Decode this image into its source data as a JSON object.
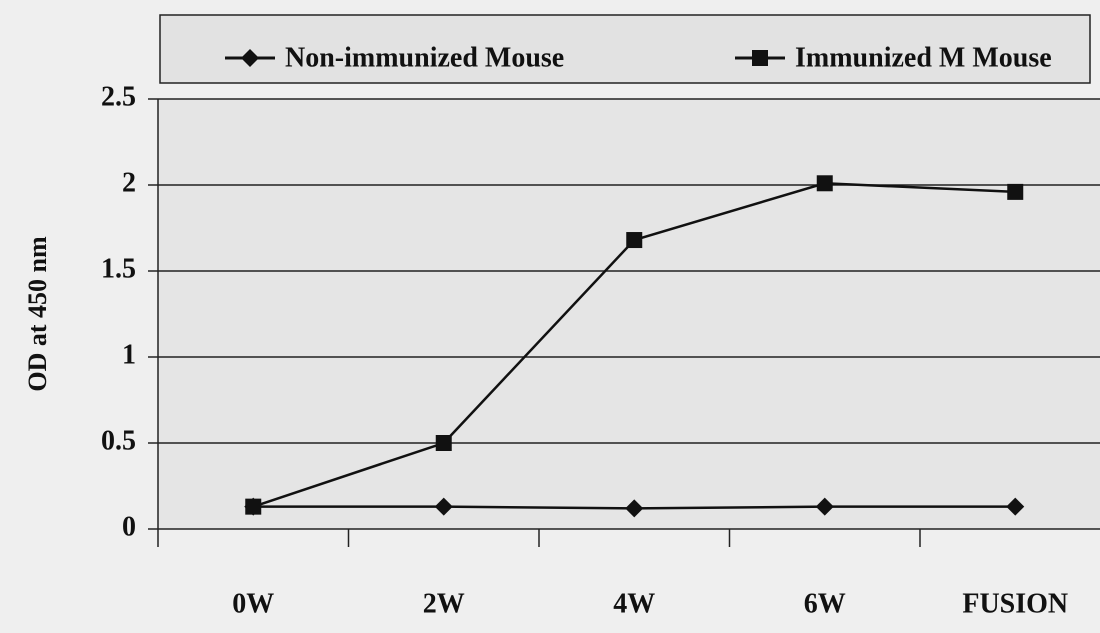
{
  "chart_data": {
    "type": "line",
    "y_label": "OD at 450 nm",
    "categories": [
      "0W",
      "2W",
      "4W",
      "6W",
      "FUSION"
    ],
    "series": [
      {
        "name": "Non-immunized Mouse",
        "color": "#111111",
        "marker": "diamond",
        "values": [
          0.13,
          0.13,
          0.12,
          0.13,
          0.13
        ]
      },
      {
        "name": "Immunized M Mouse",
        "color": "#111111",
        "marker": "square",
        "values": [
          0.13,
          0.5,
          1.68,
          2.01,
          1.96
        ]
      }
    ],
    "ylim": [
      0,
      2.5
    ],
    "yticks": [
      0,
      0.5,
      1,
      1.5,
      2,
      2.5
    ],
    "grid": true,
    "legend": "top"
  }
}
